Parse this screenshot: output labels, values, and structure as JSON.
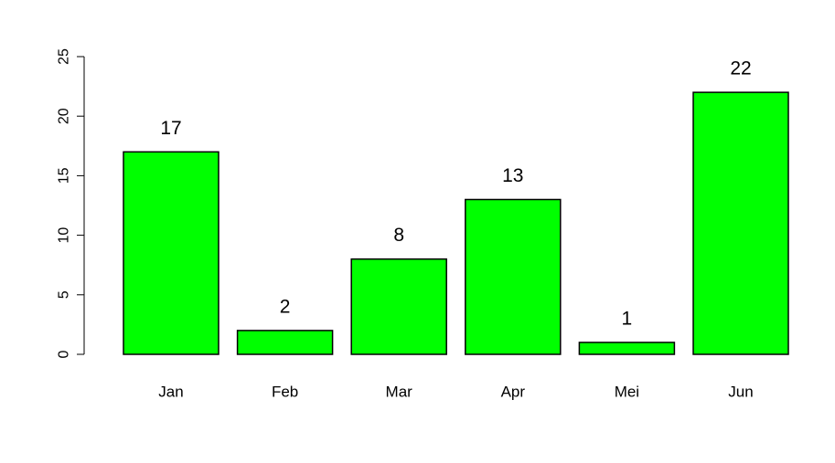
{
  "chart_data": {
    "type": "bar",
    "title": "",
    "xlabel": "",
    "ylabel": "",
    "categories": [
      "Jan",
      "Feb",
      "Mar",
      "Apr",
      "Mei",
      "Jun"
    ],
    "values": [
      17,
      2,
      8,
      13,
      1,
      22
    ],
    "data_labels": [
      "17",
      "2",
      "8",
      "13",
      "1",
      "22"
    ],
    "ylim": [
      0,
      25
    ],
    "yticks": [
      0,
      5,
      10,
      15,
      20,
      25
    ],
    "ytick_labels": [
      "0",
      "5",
      "10",
      "15",
      "20",
      "25"
    ],
    "grid": false,
    "legend": "none",
    "bar_color": "#00ff00",
    "bar_edge_color": "#000000"
  }
}
